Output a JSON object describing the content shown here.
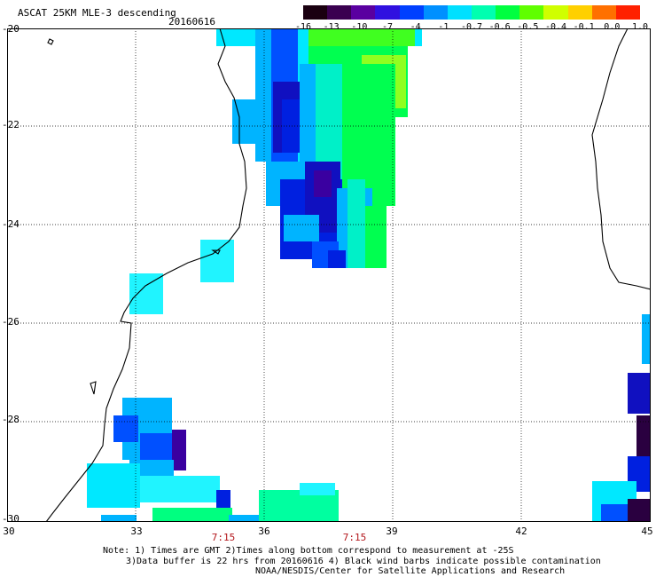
{
  "header": {
    "title": "ASCAT 25KM MLE-3 descending",
    "date": "20160616"
  },
  "colorbar": {
    "tick_labels": [
      "-16",
      "-13",
      "-10",
      "-7",
      "-4",
      "-1",
      "-0.7",
      "-0.6",
      "-0.5",
      "-0.4",
      "-0.1",
      "0.0",
      "1.0"
    ],
    "colors": [
      "#1a0010",
      "#3a0050",
      "#5a00a0",
      "#3010e0",
      "#0040ff",
      "#0090ff",
      "#00e0ff",
      "#00ffb0",
      "#00ff40",
      "#60ff00",
      "#d0ff00",
      "#ffd000",
      "#ff7000",
      "#ff2000"
    ]
  },
  "map": {
    "lon_labels": [
      "30",
      "33",
      "36",
      "39",
      "42",
      "45"
    ],
    "lat_labels": [
      "-20",
      "-22",
      "-24",
      "-26",
      "-28",
      "-30"
    ],
    "time_labels": [
      "7:15",
      "7:15"
    ],
    "grid_style": "dotted",
    "lon_range": [
      30,
      45
    ],
    "lat_range": [
      -30,
      -20
    ]
  },
  "footer": {
    "line1": "Note: 1) Times are GMT 2)Times along bottom correspond to measurement at -25S",
    "line2": "3)Data buffer is 22 hrs from 20160616 4) Black wind barbs indicate possible contamination",
    "line3": "NOAA/NESDIS/Center for Satellite Applications and Research"
  }
}
